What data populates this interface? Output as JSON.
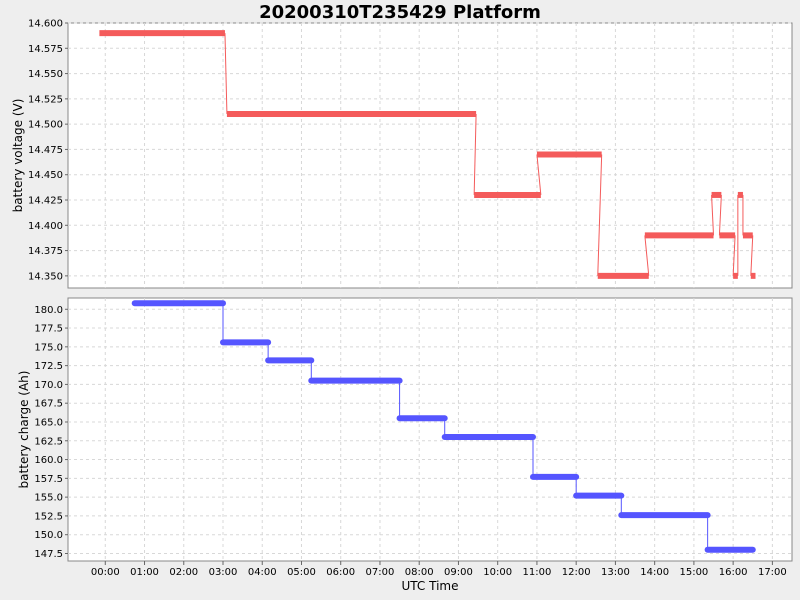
{
  "chart_data": {
    "title": "20200310T235429 Platform",
    "xlabel": "UTC Time",
    "xticks": [
      "00:00",
      "01:00",
      "02:00",
      "03:00",
      "04:00",
      "05:00",
      "06:00",
      "07:00",
      "08:00",
      "09:00",
      "10:00",
      "11:00",
      "12:00",
      "13:00",
      "14:00",
      "15:00",
      "16:00",
      "17:00"
    ],
    "xlim": [
      -0.95,
      17.5
    ],
    "grid": true,
    "panels": [
      {
        "type": "line",
        "ylabel": "battery voltage (V)",
        "ylim": [
          14.338,
          14.6
        ],
        "yticks": [
          14.35,
          14.375,
          14.4,
          14.425,
          14.45,
          14.475,
          14.5,
          14.525,
          14.55,
          14.575,
          14.6
        ],
        "ytick_decimals": 3,
        "color": "#f45b5b",
        "segments": [
          {
            "x0": -0.15,
            "x1": 3.05,
            "y": 14.59
          },
          {
            "x0": 3.1,
            "x1": 9.45,
            "y": 14.51
          },
          {
            "x0": 9.4,
            "x1": 11.1,
            "y": 14.43
          },
          {
            "x0": 11.0,
            "x1": 12.65,
            "y": 14.47
          },
          {
            "x0": 12.55,
            "x1": 13.85,
            "y": 14.35
          },
          {
            "x0": 13.75,
            "x1": 15.5,
            "y": 14.39
          },
          {
            "x0": 15.45,
            "x1": 15.7,
            "y": 14.43
          },
          {
            "x0": 15.65,
            "x1": 16.05,
            "y": 14.39
          },
          {
            "x0": 16.0,
            "x1": 16.12,
            "y": 14.35
          },
          {
            "x0": 16.12,
            "x1": 16.25,
            "y": 14.43
          },
          {
            "x0": 16.25,
            "x1": 16.5,
            "y": 14.39
          },
          {
            "x0": 16.45,
            "x1": 16.57,
            "y": 14.35
          }
        ]
      },
      {
        "type": "line",
        "ylabel": "battery charge (Ah)",
        "ylim": [
          146.5,
          181.5
        ],
        "yticks": [
          147.5,
          150.0,
          152.5,
          155.0,
          157.5,
          160.0,
          162.5,
          165.0,
          167.5,
          170.0,
          172.5,
          175.0,
          177.5,
          180.0
        ],
        "ytick_decimals": 1,
        "color": "#5555ff",
        "segments": [
          {
            "x0": 0.75,
            "x1": 3.0,
            "y": 180.8
          },
          {
            "x0": 3.0,
            "x1": 4.15,
            "y": 175.6
          },
          {
            "x0": 4.15,
            "x1": 5.25,
            "y": 173.2
          },
          {
            "x0": 5.25,
            "x1": 7.5,
            "y": 170.5
          },
          {
            "x0": 7.5,
            "x1": 8.65,
            "y": 165.5
          },
          {
            "x0": 8.65,
            "x1": 10.9,
            "y": 163.0
          },
          {
            "x0": 10.9,
            "x1": 12.0,
            "y": 157.7
          },
          {
            "x0": 12.0,
            "x1": 13.15,
            "y": 155.2
          },
          {
            "x0": 13.15,
            "x1": 15.35,
            "y": 152.6
          },
          {
            "x0": 15.35,
            "x1": 16.5,
            "y": 148.0
          }
        ]
      }
    ]
  }
}
